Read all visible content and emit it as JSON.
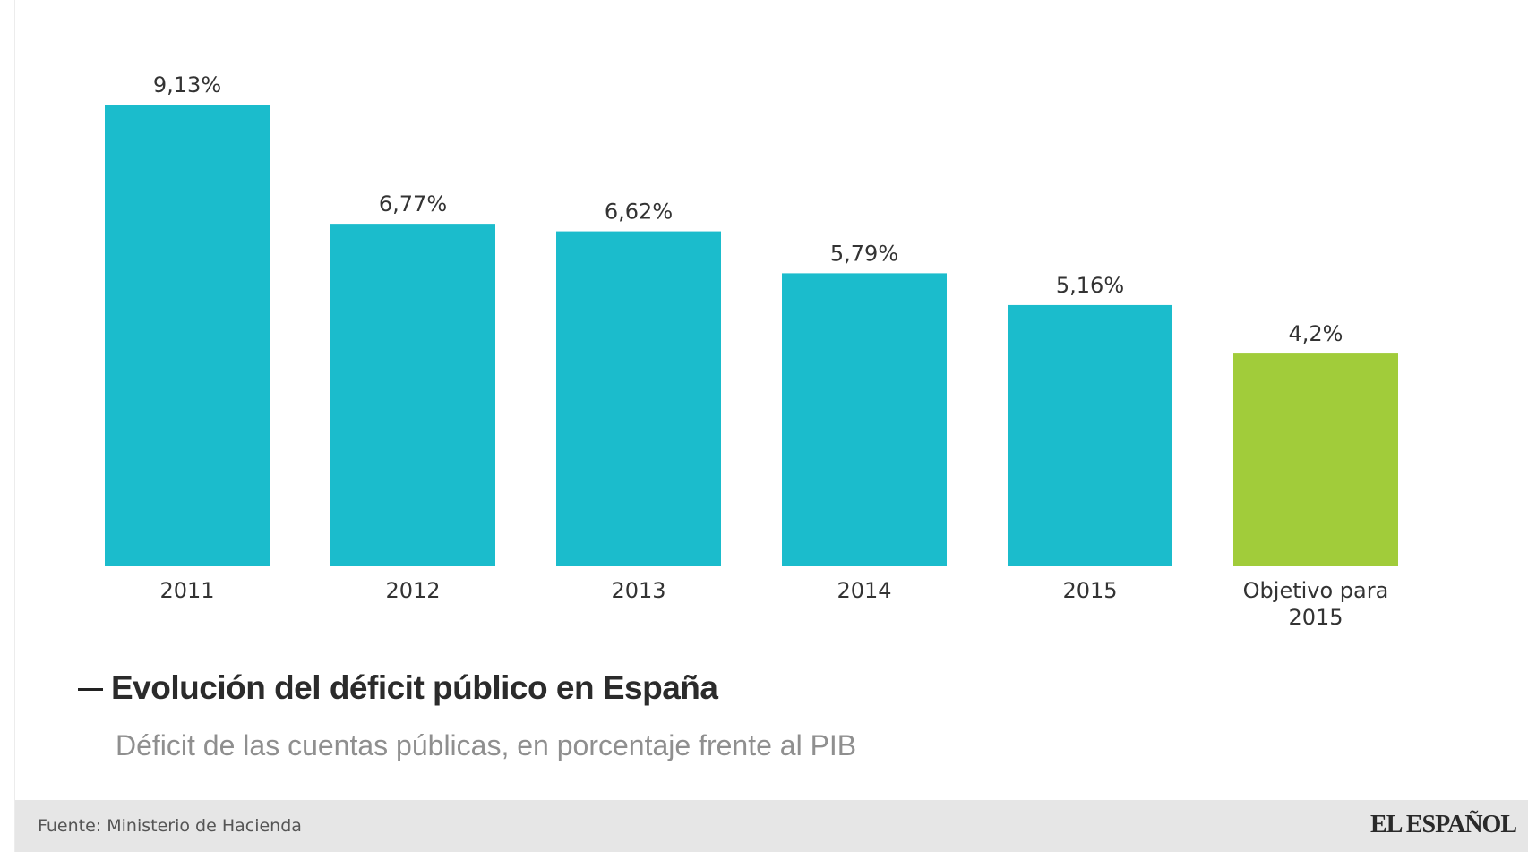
{
  "chart_data": {
    "type": "bar",
    "categories": [
      "2011",
      "2012",
      "2013",
      "2014",
      "2015",
      "Objetivo para 2015"
    ],
    "category_lines": [
      [
        "2011"
      ],
      [
        "2012"
      ],
      [
        "2013"
      ],
      [
        "2014"
      ],
      [
        "2015"
      ],
      [
        "Objetivo para",
        "2015"
      ]
    ],
    "values": [
      9.13,
      6.77,
      6.62,
      5.79,
      5.16,
      4.2
    ],
    "value_labels": [
      "9,13%",
      "6,77%",
      "6,62%",
      "5,79%",
      "5,16%",
      "4,2%"
    ],
    "colors": [
      "#1bbccc",
      "#1bbccc",
      "#1bbccc",
      "#1bbccc",
      "#1bbccc",
      "#a1cc3a"
    ],
    "ylim": [
      0,
      9.13
    ],
    "title": "Evolución del déficit público en España",
    "subtitle": "Déficit de las cuentas públicas, en porcentaje frente al PIB",
    "xlabel": "",
    "ylabel": "",
    "grid": false
  },
  "footer": {
    "source": "Fuente: Ministerio de Hacienda",
    "brand": "EL ESPAÑOL"
  }
}
